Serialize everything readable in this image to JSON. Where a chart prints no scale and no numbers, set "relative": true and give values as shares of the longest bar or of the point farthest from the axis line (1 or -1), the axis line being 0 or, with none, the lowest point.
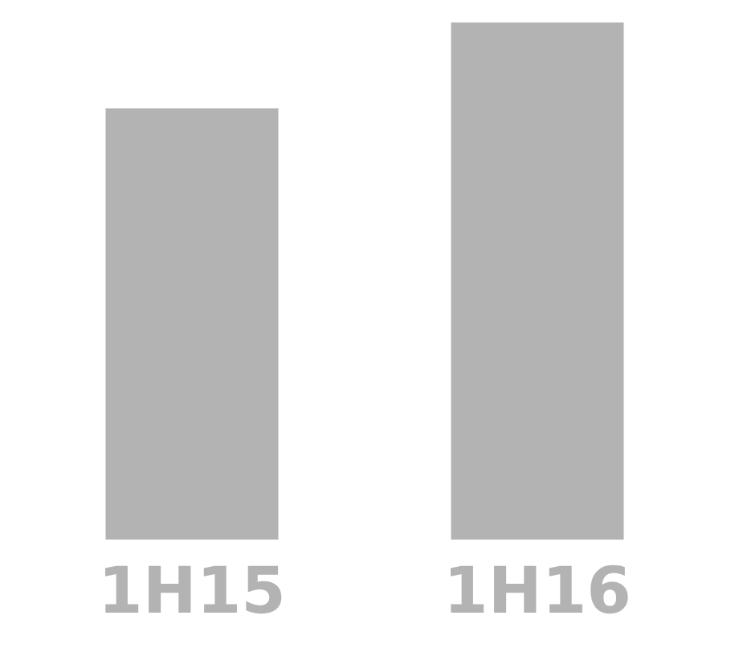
{
  "chart_data": {
    "type": "bar",
    "categories": [
      "1H15",
      "1H16"
    ],
    "values": [
      0.834,
      1
    ],
    "color": "#b3b3b3",
    "relative": true
  }
}
